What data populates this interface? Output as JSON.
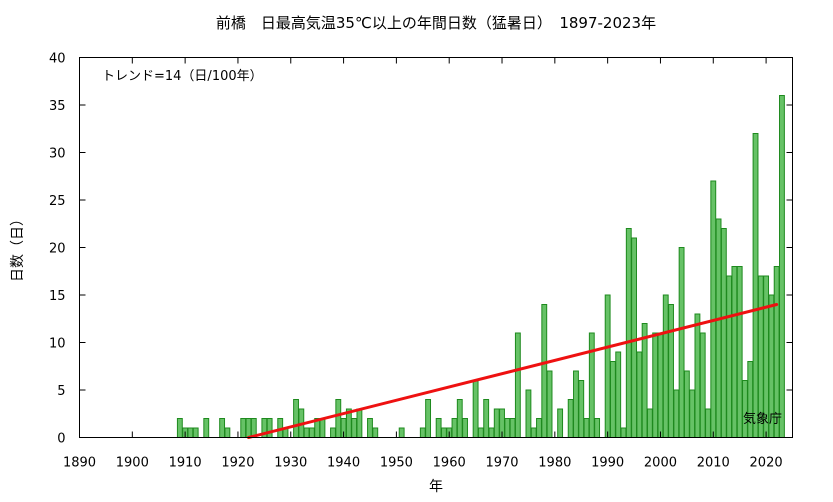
{
  "chart_data": {
    "type": "bar",
    "title": "前橋　日最高気温35℃以上の年間日数（猛暑日）　1897-2023年",
    "xlabel": "年",
    "ylabel": "日数（日）",
    "xlim": [
      1890,
      2025
    ],
    "ylim": [
      0,
      40
    ],
    "xticks": [
      1890,
      1900,
      1910,
      1920,
      1930,
      1940,
      1950,
      1960,
      1970,
      1980,
      1990,
      2000,
      2010,
      2020
    ],
    "yticks": [
      0,
      5,
      10,
      15,
      20,
      25,
      30,
      35,
      40
    ],
    "grid": false,
    "annotation": "トレンド=14（日/100年）",
    "source": "気象庁",
    "colors": {
      "bar_fill": "#66c266",
      "bar_stroke": "#1e8a1e",
      "trend": "#ee1111"
    },
    "trend": {
      "x": [
        1922,
        2022
      ],
      "y": [
        0,
        14
      ]
    },
    "series": [
      {
        "x": [
          1897,
          1898,
          1899,
          1900,
          1901,
          1902,
          1903,
          1904,
          1905,
          1906,
          1907,
          1908,
          1909,
          1910,
          1911,
          1912,
          1913,
          1914,
          1915,
          1916,
          1917,
          1918,
          1919,
          1920,
          1921,
          1922,
          1923,
          1924,
          1925,
          1926,
          1927,
          1928,
          1929,
          1930,
          1931,
          1932,
          1933,
          1934,
          1935,
          1936,
          1937,
          1938,
          1939,
          1940,
          1941,
          1942,
          1943,
          1944,
          1945,
          1946,
          1947,
          1948,
          1949,
          1950,
          1951,
          1952,
          1953,
          1954,
          1955,
          1956,
          1957,
          1958,
          1959,
          1960,
          1961,
          1962,
          1963,
          1964,
          1965,
          1966,
          1967,
          1968,
          1969,
          1970,
          1971,
          1972,
          1973,
          1974,
          1975,
          1976,
          1977,
          1978,
          1979,
          1980,
          1981,
          1982,
          1983,
          1984,
          1985,
          1986,
          1987,
          1988,
          1989,
          1990,
          1991,
          1992,
          1993,
          1994,
          1995,
          1996,
          1997,
          1998,
          1999,
          2000,
          2001,
          2002,
          2003,
          2004,
          2005,
          2006,
          2007,
          2008,
          2009,
          2010,
          2011,
          2012,
          2013,
          2014,
          2015,
          2016,
          2017,
          2018,
          2019,
          2020,
          2021,
          2022,
          2023
        ],
        "values": [
          0,
          0,
          0,
          0,
          0,
          0,
          0,
          0,
          0,
          0,
          0,
          0,
          2,
          1,
          1,
          1,
          0,
          2,
          0,
          0,
          2,
          1,
          0,
          0,
          2,
          2,
          2,
          0,
          2,
          2,
          0,
          2,
          1,
          0,
          4,
          3,
          1,
          1,
          2,
          2,
          0,
          1,
          4,
          2,
          3,
          2,
          3,
          0,
          2,
          1,
          0,
          0,
          0,
          0,
          1,
          0,
          0,
          0,
          1,
          4,
          0,
          2,
          1,
          1,
          2,
          4,
          2,
          0,
          6,
          1,
          4,
          1,
          3,
          3,
          2,
          2,
          11,
          0,
          5,
          1,
          2,
          14,
          7,
          0,
          3,
          0,
          4,
          7,
          6,
          2,
          11,
          2,
          0,
          15,
          8,
          9,
          1,
          22,
          21,
          9,
          12,
          3,
          11,
          11,
          15,
          14,
          5,
          20,
          7,
          5,
          13,
          11,
          3,
          27,
          23,
          22,
          17,
          18,
          18,
          6,
          8,
          32,
          17,
          17,
          15,
          18,
          36
        ]
      }
    ]
  }
}
